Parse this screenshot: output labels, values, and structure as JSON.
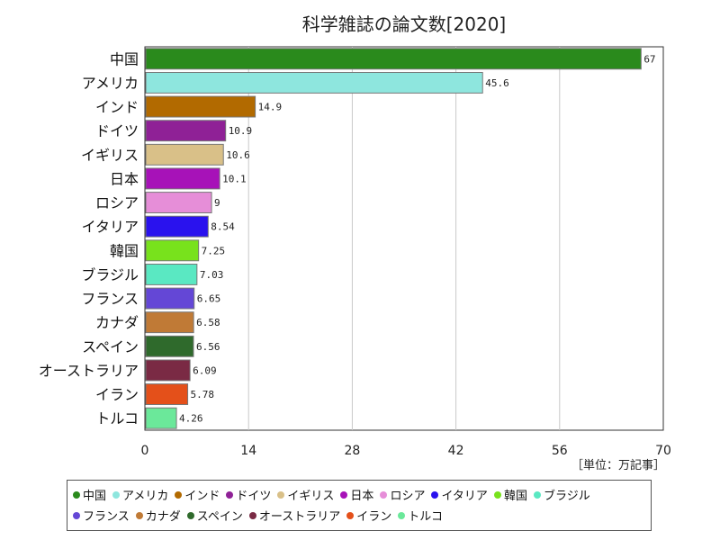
{
  "chart_data": {
    "type": "bar",
    "orientation": "horizontal",
    "title": "科学雑誌の論文数[2020]",
    "unit_label": "［単位：万記事］",
    "xlim": [
      0,
      70
    ],
    "xticks": [
      "0",
      "14",
      "28",
      "42",
      "56",
      "70"
    ],
    "grid": true,
    "legend_position": "bottom",
    "categories": [
      "中国",
      "アメリカ",
      "インド",
      "ドイツ",
      "イギリス",
      "日本",
      "ロシア",
      "イタリア",
      "韓国",
      "ブラジル",
      "フランス",
      "カナダ",
      "スペイン",
      "オーストラリア",
      "イラン",
      "トルコ"
    ],
    "values": [
      67,
      45.6,
      14.9,
      10.9,
      10.6,
      10.1,
      9,
      8.54,
      7.25,
      7.03,
      6.65,
      6.58,
      6.56,
      6.09,
      5.78,
      4.26
    ],
    "value_labels": [
      "67",
      "45.6",
      "14.9",
      "10.9",
      "10.6",
      "10.1",
      "9",
      "8.54",
      "7.25",
      "7.03",
      "6.65",
      "6.58",
      "6.56",
      "6.09",
      "5.78",
      "4.26"
    ],
    "colors": [
      "#2a8a1c",
      "#8ee6de",
      "#b26a00",
      "#8f2196",
      "#d9c088",
      "#a712b8",
      "#e68ed8",
      "#2a12ee",
      "#78e21c",
      "#5ae8c2",
      "#6447d6",
      "#c07a36",
      "#2f6a2c",
      "#7a2a44",
      "#e4501a",
      "#6be89a"
    ]
  }
}
